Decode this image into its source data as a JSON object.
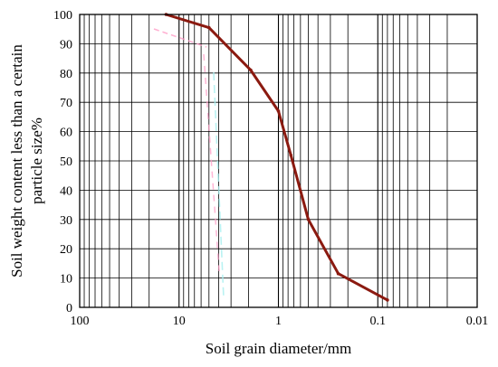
{
  "chart_data": {
    "type": "line",
    "title": "",
    "xlabel": "Soil grain diameter/mm",
    "ylabel_lines": [
      "Soil weight content less than a certain",
      "particle size%"
    ],
    "x_scale": "log",
    "x_reversed": true,
    "xlim": [
      100,
      0.01
    ],
    "ylim": [
      0,
      100
    ],
    "x_tick_values": [
      100,
      10,
      1,
      0.1,
      0.01
    ],
    "x_tick_labels": [
      "100",
      "10",
      "1",
      "0.1",
      "0.01"
    ],
    "y_tick_values": [
      0,
      10,
      20,
      30,
      40,
      50,
      60,
      70,
      80,
      90,
      100
    ],
    "y_tick_labels": [
      "0",
      "10",
      "20",
      "30",
      "40",
      "50",
      "60",
      "70",
      "80",
      "90",
      "100"
    ],
    "grid": true,
    "legend": "none",
    "series": [
      {
        "x": [
          13.5,
          5,
          1.9,
          1,
          0.75,
          0.5,
          0.25,
          0.08
        ],
        "y": [
          100,
          95.5,
          81,
          67,
          52,
          30,
          11.5,
          2.5
        ]
      }
    ],
    "colors": {
      "line": "#8b1a10",
      "grid": "#000000",
      "artifact_pink": "#ff9ec8",
      "artifact_cyan": "#a8f0f0"
    }
  }
}
